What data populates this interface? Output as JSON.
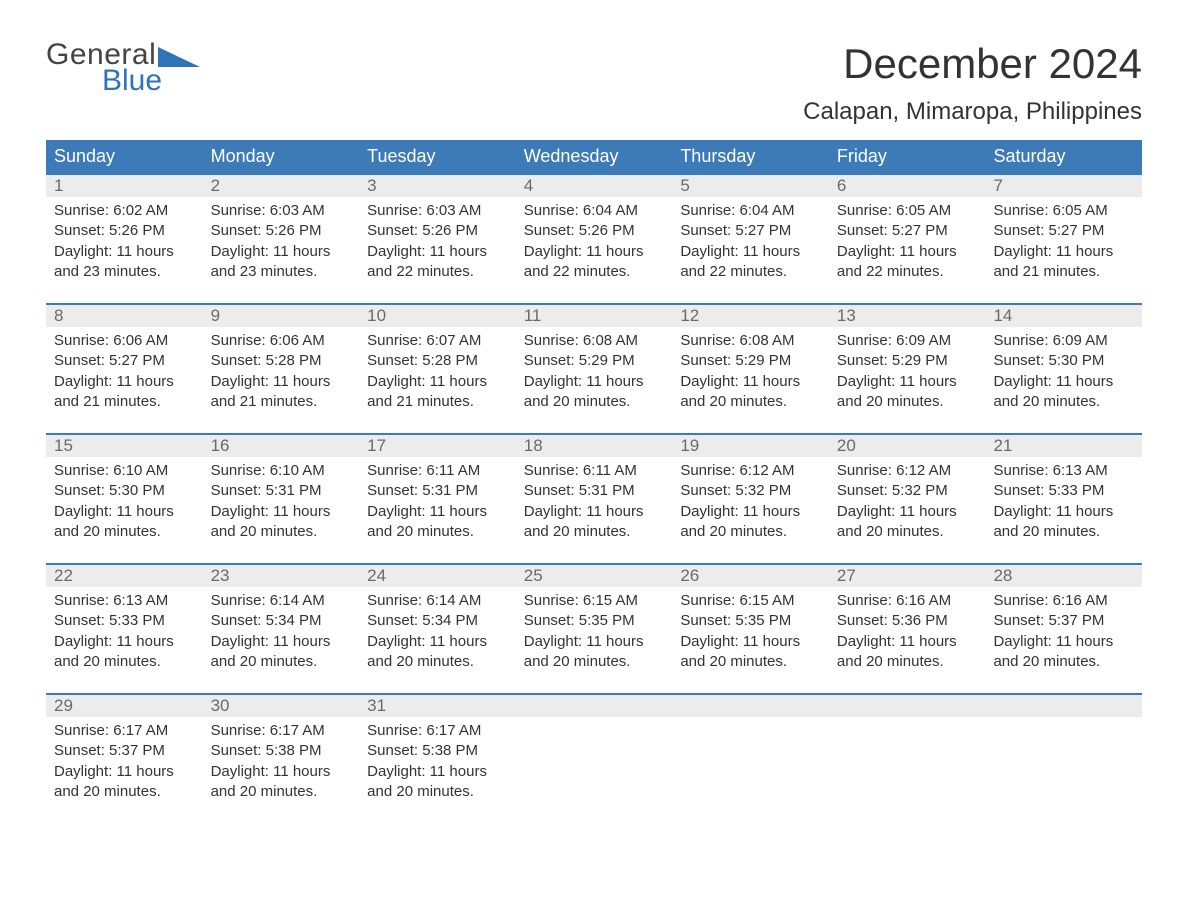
{
  "brand": {
    "word1": "General",
    "word2": "Blue",
    "accent_color": "#2f75b5",
    "text_color": "#444444"
  },
  "header": {
    "month_title": "December 2024",
    "location": "Calapan, Mimaropa, Philippines"
  },
  "colors": {
    "header_bg": "#3d7ab8",
    "header_text": "#ffffff",
    "daynum_bg": "#ececec",
    "daynum_text": "#6a6a6a",
    "body_text": "#333333",
    "rule": "#3d7ab8",
    "page_bg": "#ffffff"
  },
  "typography": {
    "title_size_pt": 32,
    "location_size_pt": 18,
    "weekday_size_pt": 14,
    "body_size_pt": 11
  },
  "calendar": {
    "type": "table",
    "weekdays": [
      "Sunday",
      "Monday",
      "Tuesday",
      "Wednesday",
      "Thursday",
      "Friday",
      "Saturday"
    ],
    "weeks": [
      [
        {
          "num": "1",
          "sunrise": "Sunrise: 6:02 AM",
          "sunset": "Sunset: 5:26 PM",
          "dl1": "Daylight: 11 hours",
          "dl2": "and 23 minutes."
        },
        {
          "num": "2",
          "sunrise": "Sunrise: 6:03 AM",
          "sunset": "Sunset: 5:26 PM",
          "dl1": "Daylight: 11 hours",
          "dl2": "and 23 minutes."
        },
        {
          "num": "3",
          "sunrise": "Sunrise: 6:03 AM",
          "sunset": "Sunset: 5:26 PM",
          "dl1": "Daylight: 11 hours",
          "dl2": "and 22 minutes."
        },
        {
          "num": "4",
          "sunrise": "Sunrise: 6:04 AM",
          "sunset": "Sunset: 5:26 PM",
          "dl1": "Daylight: 11 hours",
          "dl2": "and 22 minutes."
        },
        {
          "num": "5",
          "sunrise": "Sunrise: 6:04 AM",
          "sunset": "Sunset: 5:27 PM",
          "dl1": "Daylight: 11 hours",
          "dl2": "and 22 minutes."
        },
        {
          "num": "6",
          "sunrise": "Sunrise: 6:05 AM",
          "sunset": "Sunset: 5:27 PM",
          "dl1": "Daylight: 11 hours",
          "dl2": "and 22 minutes."
        },
        {
          "num": "7",
          "sunrise": "Sunrise: 6:05 AM",
          "sunset": "Sunset: 5:27 PM",
          "dl1": "Daylight: 11 hours",
          "dl2": "and 21 minutes."
        }
      ],
      [
        {
          "num": "8",
          "sunrise": "Sunrise: 6:06 AM",
          "sunset": "Sunset: 5:27 PM",
          "dl1": "Daylight: 11 hours",
          "dl2": "and 21 minutes."
        },
        {
          "num": "9",
          "sunrise": "Sunrise: 6:06 AM",
          "sunset": "Sunset: 5:28 PM",
          "dl1": "Daylight: 11 hours",
          "dl2": "and 21 minutes."
        },
        {
          "num": "10",
          "sunrise": "Sunrise: 6:07 AM",
          "sunset": "Sunset: 5:28 PM",
          "dl1": "Daylight: 11 hours",
          "dl2": "and 21 minutes."
        },
        {
          "num": "11",
          "sunrise": "Sunrise: 6:08 AM",
          "sunset": "Sunset: 5:29 PM",
          "dl1": "Daylight: 11 hours",
          "dl2": "and 20 minutes."
        },
        {
          "num": "12",
          "sunrise": "Sunrise: 6:08 AM",
          "sunset": "Sunset: 5:29 PM",
          "dl1": "Daylight: 11 hours",
          "dl2": "and 20 minutes."
        },
        {
          "num": "13",
          "sunrise": "Sunrise: 6:09 AM",
          "sunset": "Sunset: 5:29 PM",
          "dl1": "Daylight: 11 hours",
          "dl2": "and 20 minutes."
        },
        {
          "num": "14",
          "sunrise": "Sunrise: 6:09 AM",
          "sunset": "Sunset: 5:30 PM",
          "dl1": "Daylight: 11 hours",
          "dl2": "and 20 minutes."
        }
      ],
      [
        {
          "num": "15",
          "sunrise": "Sunrise: 6:10 AM",
          "sunset": "Sunset: 5:30 PM",
          "dl1": "Daylight: 11 hours",
          "dl2": "and 20 minutes."
        },
        {
          "num": "16",
          "sunrise": "Sunrise: 6:10 AM",
          "sunset": "Sunset: 5:31 PM",
          "dl1": "Daylight: 11 hours",
          "dl2": "and 20 minutes."
        },
        {
          "num": "17",
          "sunrise": "Sunrise: 6:11 AM",
          "sunset": "Sunset: 5:31 PM",
          "dl1": "Daylight: 11 hours",
          "dl2": "and 20 minutes."
        },
        {
          "num": "18",
          "sunrise": "Sunrise: 6:11 AM",
          "sunset": "Sunset: 5:31 PM",
          "dl1": "Daylight: 11 hours",
          "dl2": "and 20 minutes."
        },
        {
          "num": "19",
          "sunrise": "Sunrise: 6:12 AM",
          "sunset": "Sunset: 5:32 PM",
          "dl1": "Daylight: 11 hours",
          "dl2": "and 20 minutes."
        },
        {
          "num": "20",
          "sunrise": "Sunrise: 6:12 AM",
          "sunset": "Sunset: 5:32 PM",
          "dl1": "Daylight: 11 hours",
          "dl2": "and 20 minutes."
        },
        {
          "num": "21",
          "sunrise": "Sunrise: 6:13 AM",
          "sunset": "Sunset: 5:33 PM",
          "dl1": "Daylight: 11 hours",
          "dl2": "and 20 minutes."
        }
      ],
      [
        {
          "num": "22",
          "sunrise": "Sunrise: 6:13 AM",
          "sunset": "Sunset: 5:33 PM",
          "dl1": "Daylight: 11 hours",
          "dl2": "and 20 minutes."
        },
        {
          "num": "23",
          "sunrise": "Sunrise: 6:14 AM",
          "sunset": "Sunset: 5:34 PM",
          "dl1": "Daylight: 11 hours",
          "dl2": "and 20 minutes."
        },
        {
          "num": "24",
          "sunrise": "Sunrise: 6:14 AM",
          "sunset": "Sunset: 5:34 PM",
          "dl1": "Daylight: 11 hours",
          "dl2": "and 20 minutes."
        },
        {
          "num": "25",
          "sunrise": "Sunrise: 6:15 AM",
          "sunset": "Sunset: 5:35 PM",
          "dl1": "Daylight: 11 hours",
          "dl2": "and 20 minutes."
        },
        {
          "num": "26",
          "sunrise": "Sunrise: 6:15 AM",
          "sunset": "Sunset: 5:35 PM",
          "dl1": "Daylight: 11 hours",
          "dl2": "and 20 minutes."
        },
        {
          "num": "27",
          "sunrise": "Sunrise: 6:16 AM",
          "sunset": "Sunset: 5:36 PM",
          "dl1": "Daylight: 11 hours",
          "dl2": "and 20 minutes."
        },
        {
          "num": "28",
          "sunrise": "Sunrise: 6:16 AM",
          "sunset": "Sunset: 5:37 PM",
          "dl1": "Daylight: 11 hours",
          "dl2": "and 20 minutes."
        }
      ],
      [
        {
          "num": "29",
          "sunrise": "Sunrise: 6:17 AM",
          "sunset": "Sunset: 5:37 PM",
          "dl1": "Daylight: 11 hours",
          "dl2": "and 20 minutes."
        },
        {
          "num": "30",
          "sunrise": "Sunrise: 6:17 AM",
          "sunset": "Sunset: 5:38 PM",
          "dl1": "Daylight: 11 hours",
          "dl2": "and 20 minutes."
        },
        {
          "num": "31",
          "sunrise": "Sunrise: 6:17 AM",
          "sunset": "Sunset: 5:38 PM",
          "dl1": "Daylight: 11 hours",
          "dl2": "and 20 minutes."
        },
        {
          "empty": true
        },
        {
          "empty": true
        },
        {
          "empty": true
        },
        {
          "empty": true
        }
      ]
    ]
  }
}
